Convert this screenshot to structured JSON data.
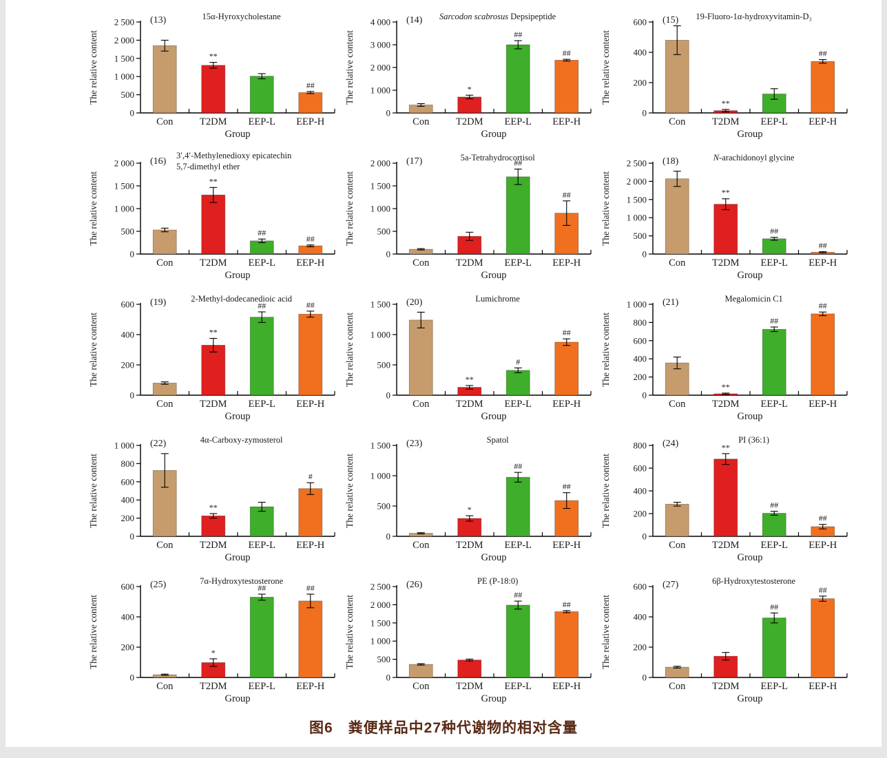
{
  "figure": {
    "caption": "图6　粪便样品中27种代谢物的相对含量",
    "caption_color": "#5a2a15"
  },
  "chart_data": {
    "type": "bar",
    "categories": [
      "Con",
      "T2DM",
      "EEP-L",
      "EEP-H"
    ],
    "xlabel": "Group",
    "ylabel": "The relative content",
    "bar_colors": [
      "#C69C6D",
      "#E01F1F",
      "#3FAE2A",
      "#F07020"
    ],
    "error_bar_color": "#000000",
    "grid": false,
    "legend": "none",
    "panels": [
      {
        "label": "(13)",
        "title": [
          [
            "15α-Hyroxycholestane",
            false
          ]
        ],
        "ylim": [
          0,
          2500
        ],
        "ytick_step": 500,
        "yticks": [
          "0",
          "500",
          "1 000",
          "1 500",
          "2 000",
          "2 500"
        ],
        "values": [
          1850,
          1310,
          1010,
          560
        ],
        "errors": [
          150,
          80,
          70,
          30
        ],
        "sig": [
          "",
          "**",
          "",
          "##"
        ]
      },
      {
        "label": "(14)",
        "title": [
          [
            "Sarcodon scabrosus",
            true
          ],
          [
            " Depsipeptide",
            false
          ]
        ],
        "ylim": [
          0,
          4000
        ],
        "ytick_step": 1000,
        "yticks": [
          "0",
          "1 000",
          "2 000",
          "3 000",
          "4 000"
        ],
        "values": [
          350,
          700,
          3000,
          2320
        ],
        "errors": [
          60,
          80,
          180,
          40
        ],
        "sig": [
          "",
          "*",
          "##",
          "##"
        ]
      },
      {
        "label": "(15)",
        "title": [
          [
            "19-Fluoro-1α-hydroxyvitamin-D₃",
            false
          ]
        ],
        "ylim": [
          0,
          600
        ],
        "ytick_step": 200,
        "yticks": [
          "0",
          "200",
          "400",
          "600"
        ],
        "values": [
          480,
          15,
          125,
          340
        ],
        "errors": [
          95,
          8,
          35,
          12
        ],
        "sig": [
          "",
          "**",
          "",
          "##"
        ]
      },
      {
        "label": "(16)",
        "title": [
          [
            "3′,4′-Methylenedioxy epicatechin",
            false
          ]
        ],
        "title_line2": "5,7-dimethyl ether",
        "ylim": [
          0,
          2000
        ],
        "ytick_step": 500,
        "yticks": [
          "0",
          "500",
          "1 000",
          "1 500",
          "2 000"
        ],
        "values": [
          530,
          1300,
          290,
          180
        ],
        "errors": [
          40,
          165,
          40,
          20
        ],
        "sig": [
          "",
          "**",
          "##",
          "##"
        ]
      },
      {
        "label": "(17)",
        "title": [
          [
            "5a-Tetrahydrocortisol",
            false
          ]
        ],
        "ylim": [
          0,
          2000
        ],
        "ytick_step": 500,
        "yticks": [
          "0",
          "500",
          "1 000",
          "1 500",
          "2 000"
        ],
        "values": [
          105,
          390,
          1700,
          900
        ],
        "errors": [
          15,
          90,
          170,
          270
        ],
        "sig": [
          "",
          "",
          "##",
          "##"
        ]
      },
      {
        "label": "(18)",
        "title": [
          [
            "N",
            true
          ],
          [
            "-arachidonoyl glycine",
            false
          ]
        ],
        "ylim": [
          0,
          2500
        ],
        "ytick_step": 500,
        "yticks": [
          "0",
          "500",
          "1 000",
          "1 500",
          "2 000",
          "2 500"
        ],
        "values": [
          2070,
          1370,
          420,
          50
        ],
        "errors": [
          210,
          150,
          40,
          15
        ],
        "sig": [
          "",
          "**",
          "##",
          "##"
        ]
      },
      {
        "label": "(19)",
        "title": [
          [
            "2-Methyl-dodecanedioic acid",
            false
          ]
        ],
        "ylim": [
          0,
          600
        ],
        "ytick_step": 200,
        "yticks": [
          "0",
          "200",
          "400",
          "600"
        ],
        "values": [
          80,
          330,
          515,
          535
        ],
        "errors": [
          8,
          45,
          35,
          20
        ],
        "sig": [
          "",
          "**",
          "##",
          "##"
        ]
      },
      {
        "label": "(20)",
        "title": [
          [
            "Lumichrome",
            false
          ]
        ],
        "ylim": [
          0,
          1500
        ],
        "ytick_step": 500,
        "yticks": [
          "0",
          "500",
          "1 000",
          "1 500"
        ],
        "values": [
          1240,
          130,
          410,
          875
        ],
        "errors": [
          130,
          30,
          40,
          55
        ],
        "sig": [
          "",
          "**",
          "#",
          "##"
        ]
      },
      {
        "label": "(21)",
        "title": [
          [
            "Megalomicin C1",
            false
          ]
        ],
        "ylim": [
          0,
          1000
        ],
        "ytick_step": 200,
        "yticks": [
          "0",
          "200",
          "400",
          "600",
          "800",
          "1 000"
        ],
        "values": [
          355,
          15,
          725,
          895
        ],
        "errors": [
          65,
          8,
          25,
          20
        ],
        "sig": [
          "",
          "**",
          "##",
          "##"
        ]
      },
      {
        "label": "(22)",
        "title": [
          [
            "4α-Carboxy-zymosterol",
            false
          ]
        ],
        "ylim": [
          0,
          1000
        ],
        "ytick_step": 200,
        "yticks": [
          "0",
          "200",
          "400",
          "600",
          "800",
          "1 000"
        ],
        "values": [
          725,
          225,
          325,
          525
        ],
        "errors": [
          185,
          25,
          50,
          65
        ],
        "sig": [
          "",
          "**",
          "",
          "#"
        ]
      },
      {
        "label": "(23)",
        "title": [
          [
            "Spatol",
            false
          ]
        ],
        "ylim": [
          0,
          1500
        ],
        "ytick_step": 500,
        "yticks": [
          "0",
          "500",
          "1 000",
          "1 500"
        ],
        "values": [
          50,
          295,
          975,
          590
        ],
        "errors": [
          10,
          45,
          80,
          130
        ],
        "sig": [
          "",
          "*",
          "##",
          "##"
        ]
      },
      {
        "label": "(24)",
        "title": [
          [
            "PI (36:1)",
            false
          ]
        ],
        "ylim": [
          0,
          800
        ],
        "ytick_step": 200,
        "yticks": [
          "0",
          "200",
          "400",
          "600",
          "800"
        ],
        "values": [
          283,
          680,
          203,
          85
        ],
        "errors": [
          17,
          48,
          17,
          20
        ],
        "sig": [
          "",
          "**",
          "##",
          "##"
        ]
      },
      {
        "label": "(25)",
        "title": [
          [
            "7α-Hydroxytestosterone",
            false
          ]
        ],
        "ylim": [
          0,
          600
        ],
        "ytick_step": 200,
        "yticks": [
          "0",
          "200",
          "400",
          "600"
        ],
        "values": [
          18,
          98,
          530,
          505
        ],
        "errors": [
          4,
          25,
          20,
          45
        ],
        "sig": [
          "",
          "*",
          "##",
          "##"
        ]
      },
      {
        "label": "(26)",
        "title": [
          [
            "PE (P-18:0)",
            false
          ]
        ],
        "ylim": [
          0,
          2500
        ],
        "ytick_step": 500,
        "yticks": [
          "0",
          "500",
          "1 000",
          "1 500",
          "2 000",
          "2 500"
        ],
        "values": [
          360,
          480,
          1990,
          1810
        ],
        "errors": [
          20,
          25,
          110,
          30
        ],
        "sig": [
          "",
          "",
          "##",
          "##"
        ]
      },
      {
        "label": "(27)",
        "title": [
          [
            "6β-Hydroxytestosterone",
            false
          ]
        ],
        "ylim": [
          0,
          600
        ],
        "ytick_step": 200,
        "yticks": [
          "0",
          "200",
          "400",
          "600"
        ],
        "values": [
          68,
          140,
          393,
          520
        ],
        "errors": [
          6,
          25,
          33,
          17
        ],
        "sig": [
          "",
          "",
          "##",
          "##"
        ]
      }
    ]
  }
}
